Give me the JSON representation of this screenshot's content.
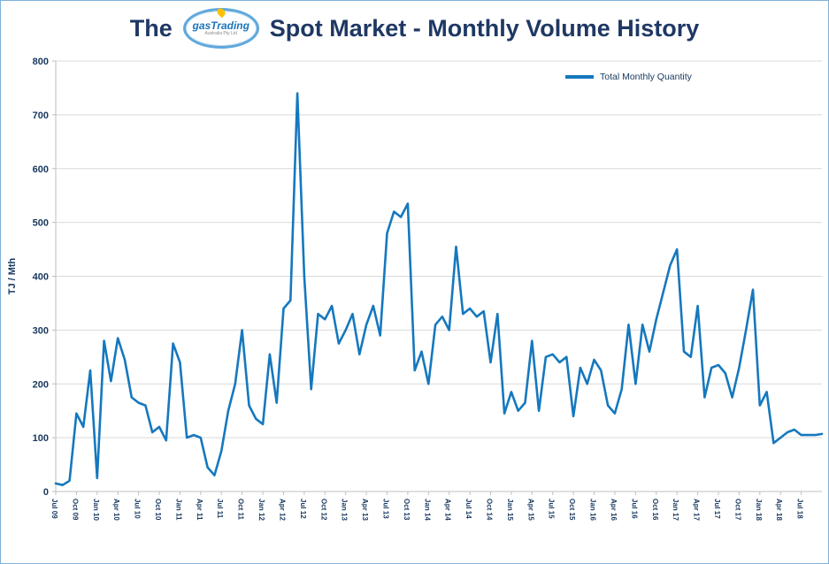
{
  "title": {
    "prefix": "The",
    "logo_text": "gasTrading",
    "logo_subtext": "Australia Pty Ltd",
    "suffix": "Spot Market - Monthly Volume History"
  },
  "colors": {
    "line": "#1578BE",
    "title_text": "#1F3864",
    "axis_text": "#17375E",
    "gridline": "#D9D9D9",
    "axis_line": "#BFBFBF",
    "border": "#7EB1DC",
    "flame": "#FFC000"
  },
  "chart_data": {
    "type": "line",
    "title": "The gasTrading Spot Market - Monthly Volume History",
    "legend": "Total Monthly Quantity",
    "legend_position": "top-right",
    "xlabel": "",
    "ylabel": "TJ / Mth",
    "ylim": [
      0,
      800
    ],
    "yticks": [
      0,
      100,
      200,
      300,
      400,
      500,
      600,
      700,
      800
    ],
    "grid": true,
    "line_color": "#1578BE",
    "x_tick_labels": [
      "Jul 09",
      "Oct 09",
      "Jan 10",
      "Apr 10",
      "Jul 10",
      "Oct 10",
      "Jan 11",
      "Apr 11",
      "Jul 11",
      "Oct 11",
      "Jan 12",
      "Apr 12",
      "Jul 12",
      "Oct 12",
      "Jan 13",
      "Apr 13",
      "Jul 13",
      "Oct 13",
      "Jan 14",
      "Apr 14",
      "Jul 14",
      "Oct 14",
      "Jan 15",
      "Apr 15",
      "Jul 15",
      "Oct 15",
      "Jan 16",
      "Apr 16",
      "Jul 16",
      "Oct 16",
      "Jan 17",
      "Apr 17",
      "Jul 17",
      "Oct 17",
      "Jan 18",
      "Apr 18",
      "Jul 18"
    ],
    "months": [
      "Jul 09",
      "Aug 09",
      "Sep 09",
      "Oct 09",
      "Nov 09",
      "Dec 09",
      "Jan 10",
      "Feb 10",
      "Mar 10",
      "Apr 10",
      "May 10",
      "Jun 10",
      "Jul 10",
      "Aug 10",
      "Sep 10",
      "Oct 10",
      "Nov 10",
      "Dec 10",
      "Jan 11",
      "Feb 11",
      "Mar 11",
      "Apr 11",
      "May 11",
      "Jun 11",
      "Jul 11",
      "Aug 11",
      "Sep 11",
      "Oct 11",
      "Nov 11",
      "Dec 11",
      "Jan 12",
      "Feb 12",
      "Mar 12",
      "Apr 12",
      "May 12",
      "Jun 12",
      "Jul 12",
      "Aug 12",
      "Sep 12",
      "Oct 12",
      "Nov 12",
      "Dec 12",
      "Jan 13",
      "Feb 13",
      "Mar 13",
      "Apr 13",
      "May 13",
      "Jun 13",
      "Jul 13",
      "Aug 13",
      "Sep 13",
      "Oct 13",
      "Nov 13",
      "Dec 13",
      "Jan 14",
      "Feb 14",
      "Mar 14",
      "Apr 14",
      "May 14",
      "Jun 14",
      "Jul 14",
      "Aug 14",
      "Sep 14",
      "Oct 14",
      "Nov 14",
      "Dec 14",
      "Jan 15",
      "Feb 15",
      "Mar 15",
      "Apr 15",
      "May 15",
      "Jun 15",
      "Jul 15",
      "Aug 15",
      "Sep 15",
      "Oct 15",
      "Nov 15",
      "Dec 15",
      "Jan 16",
      "Feb 16",
      "Mar 16",
      "Apr 16",
      "May 16",
      "Jun 16",
      "Jul 16",
      "Aug 16",
      "Sep 16",
      "Oct 16",
      "Nov 16",
      "Dec 16",
      "Jan 17",
      "Feb 17",
      "Mar 17",
      "Apr 17",
      "May 17",
      "Jun 17",
      "Jul 17",
      "Aug 17",
      "Sep 17",
      "Oct 17",
      "Nov 17",
      "Dec 17",
      "Jan 18",
      "Feb 18",
      "Mar 18",
      "Apr 18",
      "May 18",
      "Jun 18",
      "Jul 18",
      "Aug 18",
      "Sep 18",
      "Oct 18"
    ],
    "values": [
      15,
      12,
      20,
      145,
      120,
      225,
      25,
      280,
      205,
      285,
      245,
      175,
      165,
      160,
      110,
      120,
      95,
      275,
      240,
      100,
      105,
      100,
      45,
      30,
      75,
      150,
      200,
      300,
      160,
      135,
      125,
      255,
      165,
      340,
      355,
      740,
      400,
      190,
      330,
      320,
      345,
      275,
      300,
      330,
      255,
      310,
      345,
      290,
      480,
      520,
      510,
      535,
      225,
      260,
      200,
      310,
      325,
      300,
      455,
      330,
      340,
      325,
      335,
      240,
      330,
      145,
      185,
      150,
      165,
      280,
      150,
      250,
      255,
      240,
      250,
      140,
      230,
      200,
      245,
      225,
      160,
      145,
      190,
      310,
      200,
      310,
      260,
      320,
      370,
      420,
      450,
      260,
      250,
      345,
      175,
      230,
      235,
      220,
      175,
      230,
      300,
      375,
      160,
      185,
      90,
      100,
      110,
      115,
      105,
      105,
      105,
      107
    ]
  }
}
